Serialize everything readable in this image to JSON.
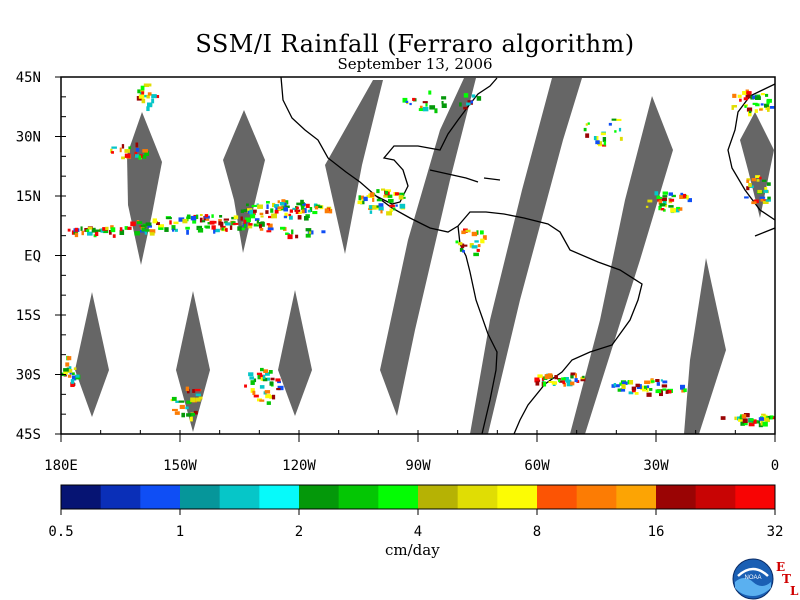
{
  "header": {
    "title": "SSM/I Rainfall (Ferraro algorithm)",
    "date": "September 13, 2006"
  },
  "axes": {
    "lat_labels": [
      "45N",
      "30N",
      "15N",
      "EQ",
      "15S",
      "30S",
      "45S"
    ],
    "lat_values": [
      45,
      30,
      15,
      0,
      -15,
      -30,
      -45
    ],
    "lon_labels": [
      "180E",
      "150W",
      "120W",
      "90W",
      "60W",
      "30W",
      "0"
    ],
    "lon_values": [
      -180,
      -150,
      -120,
      -90,
      -60,
      -30,
      0
    ],
    "lon_range": [
      -180,
      0
    ],
    "lat_range": [
      -45,
      45
    ]
  },
  "colorbar": {
    "unit": "cm/day",
    "tick_labels": [
      "0.5",
      "1",
      "2",
      "4",
      "8",
      "16",
      "32"
    ],
    "colors": [
      "#061473",
      "#0a2fb8",
      "#0f4ef5",
      "#06969a",
      "#06c6c8",
      "#06fafa",
      "#04980a",
      "#04c604",
      "#04fc04",
      "#b6b204",
      "#e0dd04",
      "#fcfc04",
      "#fc5404",
      "#fc7c04",
      "#fca404",
      "#9a0404",
      "#c80404",
      "#f80404"
    ]
  },
  "map_colors": {
    "swath_gap": "#666666",
    "coast": "#000000",
    "frame": "#000000"
  },
  "logo": {
    "noaa_text": "NOAA",
    "etl_letters": [
      "E",
      "T",
      "L"
    ]
  }
}
